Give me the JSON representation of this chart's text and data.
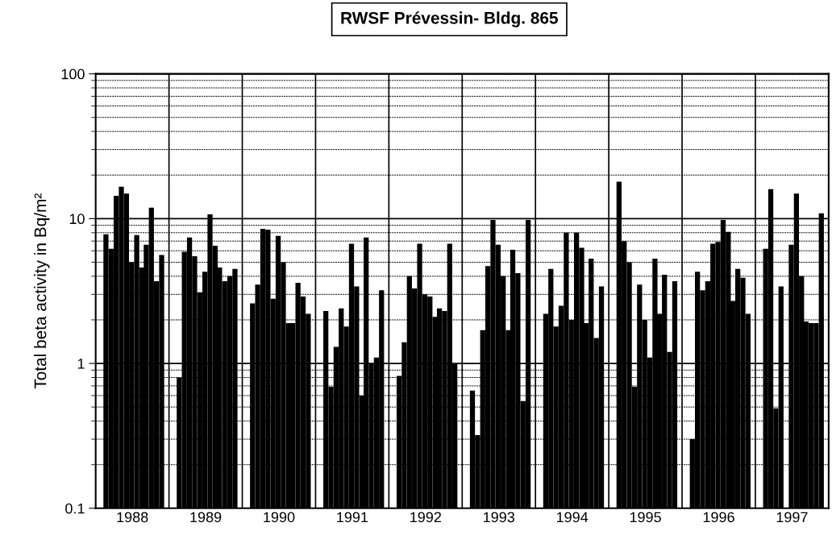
{
  "chart_data": {
    "type": "bar",
    "title": "RWSF Prévessin- Bldg. 865",
    "ylabel": "Total beta activity in Bq/m²",
    "x": [
      1988.14,
      1988.21,
      1988.28,
      1988.35,
      1988.42,
      1988.49,
      1988.56,
      1988.63,
      1988.69,
      1988.76,
      1988.83,
      1988.9,
      1989.14,
      1989.21,
      1989.28,
      1989.35,
      1989.42,
      1989.49,
      1989.56,
      1989.63,
      1989.69,
      1989.76,
      1989.83,
      1989.9,
      1990.14,
      1990.21,
      1990.28,
      1990.35,
      1990.42,
      1990.49,
      1990.56,
      1990.63,
      1990.69,
      1990.76,
      1990.83,
      1990.9,
      1991.14,
      1991.21,
      1991.28,
      1991.35,
      1991.42,
      1991.49,
      1991.56,
      1991.63,
      1991.69,
      1991.76,
      1991.83,
      1991.9,
      1992.14,
      1992.21,
      1992.28,
      1992.35,
      1992.42,
      1992.49,
      1992.56,
      1992.63,
      1992.69,
      1992.76,
      1992.83,
      1992.9,
      1993.14,
      1993.21,
      1993.28,
      1993.35,
      1993.42,
      1993.49,
      1993.56,
      1993.63,
      1993.69,
      1993.76,
      1993.83,
      1993.9,
      1994.14,
      1994.21,
      1994.28,
      1994.35,
      1994.42,
      1994.49,
      1994.56,
      1994.63,
      1994.69,
      1994.76,
      1994.83,
      1994.9,
      1995.14,
      1995.21,
      1995.28,
      1995.35,
      1995.42,
      1995.49,
      1995.56,
      1995.63,
      1995.69,
      1995.76,
      1995.83,
      1995.9,
      1996.14,
      1996.21,
      1996.28,
      1996.35,
      1996.42,
      1996.49,
      1996.56,
      1996.63,
      1996.69,
      1996.76,
      1996.83,
      1996.9,
      1997.14,
      1997.21,
      1997.28,
      1997.35,
      1997.42,
      1997.49,
      1997.56,
      1997.63,
      1997.69,
      1997.76,
      1997.83,
      1997.9
    ],
    "values": [
      7.8,
      6.2,
      14.4,
      16.6,
      14.9,
      5.0,
      7.7,
      4.6,
      6.6,
      11.9,
      3.7,
      5.6,
      0.8,
      5.9,
      7.4,
      5.5,
      3.1,
      4.3,
      10.7,
      6.5,
      4.6,
      3.7,
      4.0,
      4.5,
      2.6,
      3.5,
      8.5,
      8.4,
      2.8,
      7.6,
      5.0,
      1.9,
      1.9,
      3.6,
      2.9,
      2.2,
      2.3,
      0.69,
      1.3,
      2.4,
      1.8,
      6.7,
      3.4,
      0.6,
      7.4,
      1.0,
      1.1,
      3.2,
      0.82,
      1.4,
      4.0,
      3.3,
      6.7,
      3.0,
      2.9,
      2.1,
      2.4,
      2.3,
      6.7,
      1.0,
      0.65,
      0.32,
      1.7,
      4.7,
      9.8,
      6.6,
      4.0,
      1.7,
      6.1,
      4.2,
      0.55,
      9.8,
      2.2,
      4.5,
      1.8,
      2.5,
      8.0,
      2.0,
      8.0,
      6.3,
      1.9,
      5.3,
      1.5,
      3.4,
      18,
      7.0,
      5.0,
      0.69,
      3.5,
      2.0,
      1.1,
      5.3,
      2.2,
      4.1,
      1.2,
      3.7,
      0.3,
      4.3,
      3.2,
      3.7,
      6.7,
      6.9,
      9.8,
      8.1,
      2.7,
      4.5,
      3.9,
      2.2,
      6.2,
      16,
      0.49,
      3.4,
      null,
      6.6,
      14.9,
      4.0,
      1.95,
      1.9,
      1.9,
      10.9
    ],
    "color": "#000000",
    "log": "y",
    "ylim": [
      0.1,
      100
    ],
    "yticks": [
      0.1,
      1,
      10,
      100
    ],
    "xlim": [
      1988,
      1998
    ],
    "xticks": [
      {
        "value": 1988.5,
        "label": "1988"
      },
      {
        "value": 1989.5,
        "label": "1989"
      },
      {
        "value": 1990.5,
        "label": "1990"
      },
      {
        "value": 1991.5,
        "label": "1991"
      },
      {
        "value": 1992.5,
        "label": "1992"
      },
      {
        "value": 1993.5,
        "label": "1993"
      },
      {
        "value": 1994.5,
        "label": "1994"
      },
      {
        "value": 1995.5,
        "label": "1995"
      },
      {
        "value": 1996.5,
        "label": "1996"
      },
      {
        "value": 1997.5,
        "label": "1997"
      }
    ],
    "ref_lines": [
      {
        "axis": "x",
        "value": 1989
      },
      {
        "axis": "x",
        "value": 1990
      },
      {
        "axis": "x",
        "value": 1991
      },
      {
        "axis": "x",
        "value": 1992
      },
      {
        "axis": "x",
        "value": 1993
      },
      {
        "axis": "x",
        "value": 1994
      },
      {
        "axis": "x",
        "value": 1995
      },
      {
        "axis": "x",
        "value": 1996
      },
      {
        "axis": "x",
        "value": 1997
      }
    ],
    "grid": "y"
  }
}
